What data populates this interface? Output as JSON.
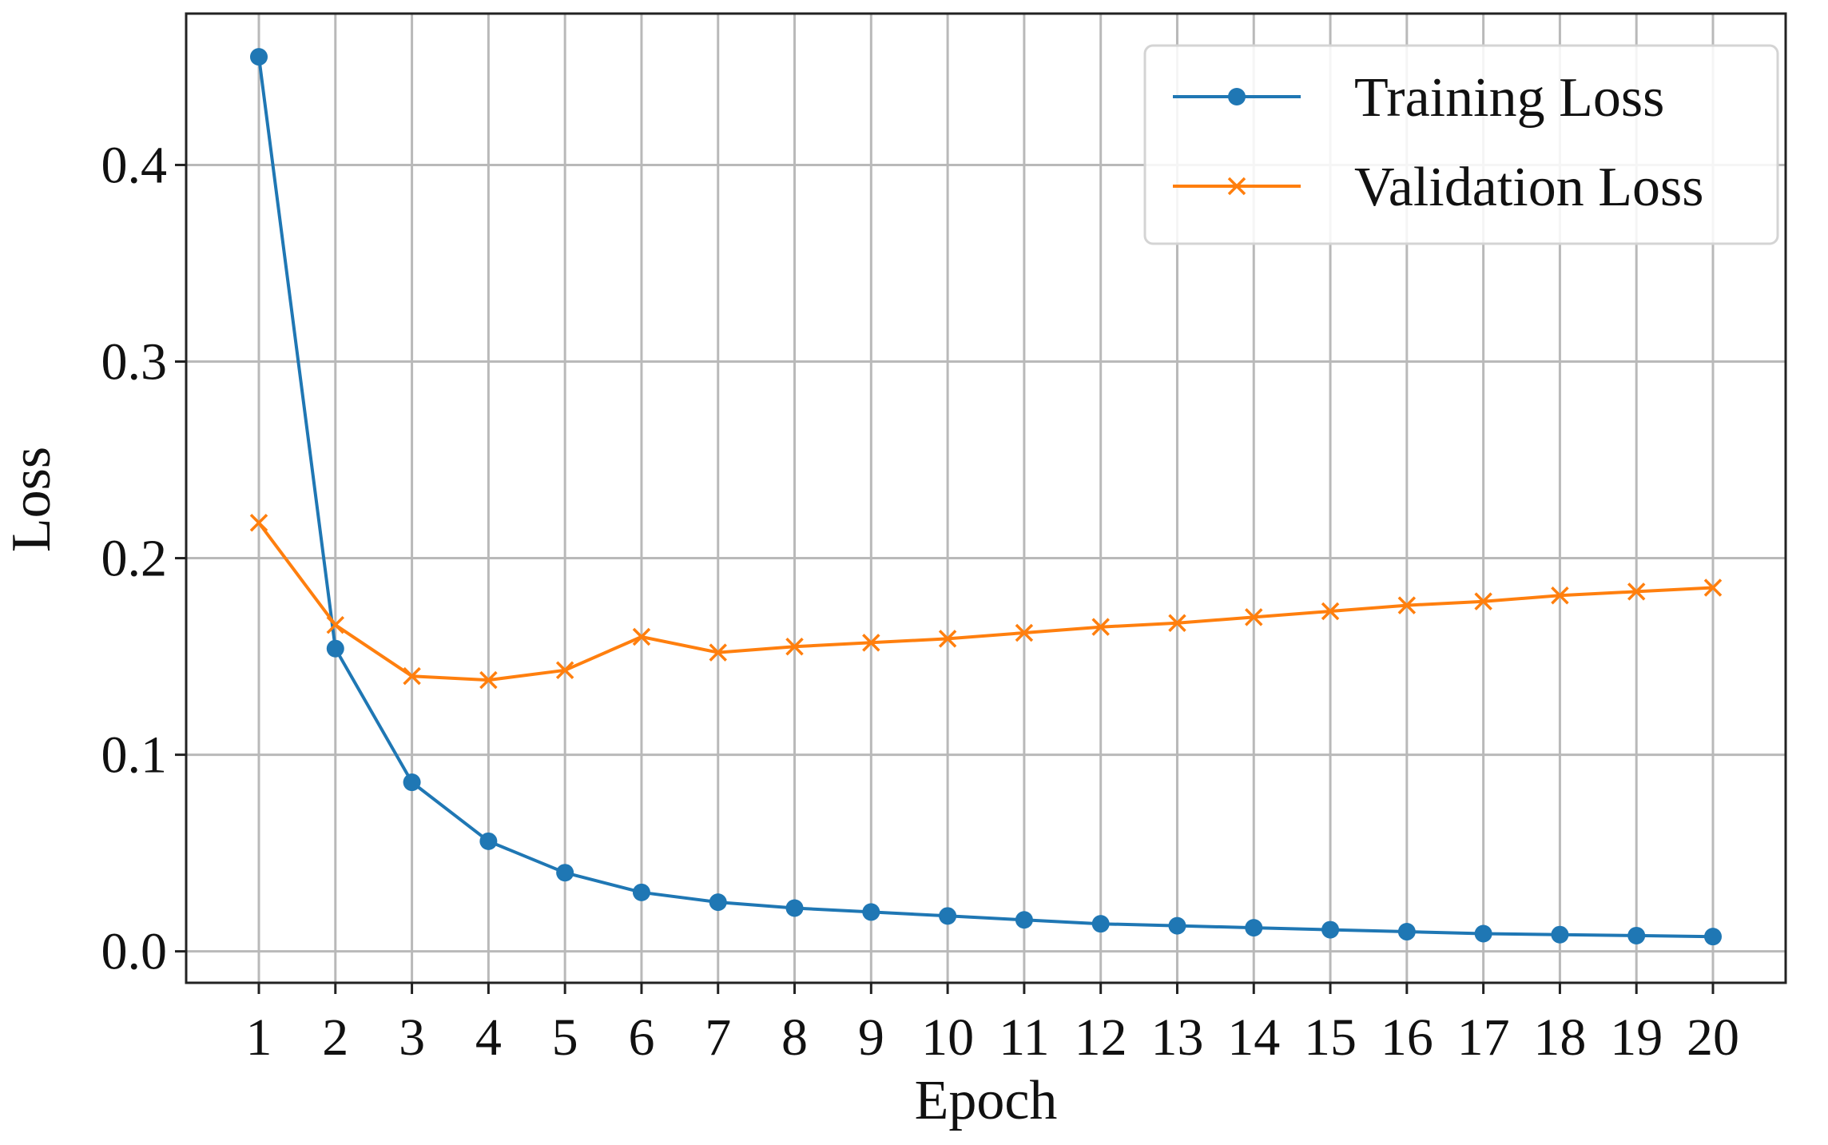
{
  "chart_data": {
    "type": "line",
    "title": "",
    "xlabel": "Epoch",
    "ylabel": "Loss",
    "x": [
      1,
      2,
      3,
      4,
      5,
      6,
      7,
      8,
      9,
      10,
      11,
      12,
      13,
      14,
      15,
      16,
      17,
      18,
      19,
      20
    ],
    "xlim": [
      0.05,
      20.95
    ],
    "ylim": [
      -0.016,
      0.477
    ],
    "yticks": [
      0.0,
      0.1,
      0.2,
      0.3,
      0.4
    ],
    "ytick_labels": [
      "0.0",
      "0.1",
      "0.2",
      "0.3",
      "0.4"
    ],
    "xtick_labels": [
      "1",
      "2",
      "3",
      "4",
      "5",
      "6",
      "7",
      "8",
      "9",
      "10",
      "11",
      "12",
      "13",
      "14",
      "15",
      "16",
      "17",
      "18",
      "19",
      "20"
    ],
    "grid": true,
    "legend": {
      "position": "top-right"
    },
    "series": [
      {
        "name": "Training Loss",
        "color": "#1f77b4",
        "marker": "circle",
        "values": [
          0.455,
          0.154,
          0.086,
          0.056,
          0.04,
          0.03,
          0.025,
          0.022,
          0.02,
          0.018,
          0.016,
          0.014,
          0.013,
          0.012,
          0.011,
          0.01,
          0.009,
          0.0085,
          0.008,
          0.0075
        ]
      },
      {
        "name": "Validation Loss",
        "color": "#ff7f0e",
        "marker": "x",
        "values": [
          0.218,
          0.166,
          0.14,
          0.138,
          0.143,
          0.16,
          0.152,
          0.155,
          0.157,
          0.159,
          0.162,
          0.165,
          0.167,
          0.17,
          0.173,
          0.176,
          0.178,
          0.181,
          0.183,
          0.185
        ]
      }
    ]
  }
}
